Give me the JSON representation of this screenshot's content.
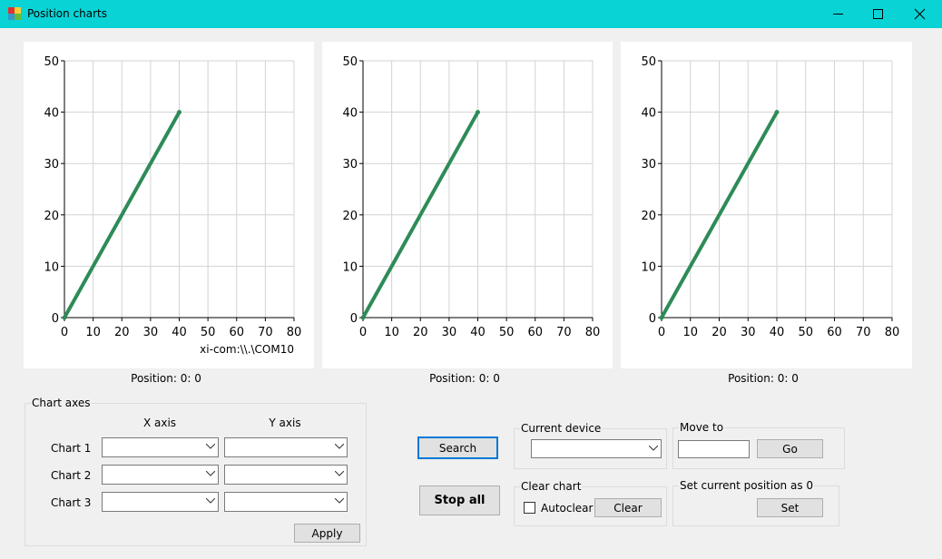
{
  "window": {
    "title": "Position charts"
  },
  "chart_data": [
    {
      "type": "line",
      "x": [
        0,
        40
      ],
      "values": [
        0,
        40
      ],
      "color": "#2e8b57",
      "xlim": [
        0,
        80
      ],
      "ylim": [
        0,
        50
      ],
      "xticks": [
        0,
        10,
        20,
        30,
        40,
        50,
        60,
        70,
        80
      ],
      "yticks": [
        0,
        10,
        20,
        30,
        40,
        50
      ],
      "grid": true,
      "annotation": "xi-com:\\\\.\\COM10"
    },
    {
      "type": "line",
      "x": [
        0,
        40
      ],
      "values": [
        0,
        40
      ],
      "color": "#2e8b57",
      "xlim": [
        0,
        80
      ],
      "ylim": [
        0,
        50
      ],
      "xticks": [
        0,
        10,
        20,
        30,
        40,
        50,
        60,
        70,
        80
      ],
      "yticks": [
        0,
        10,
        20,
        30,
        40,
        50
      ],
      "grid": true
    },
    {
      "type": "line",
      "x": [
        0,
        40
      ],
      "values": [
        0,
        40
      ],
      "color": "#2e8b57",
      "xlim": [
        0,
        80
      ],
      "ylim": [
        0,
        50
      ],
      "xticks": [
        0,
        10,
        20,
        30,
        40,
        50,
        60,
        70,
        80
      ],
      "yticks": [
        0,
        10,
        20,
        30,
        40,
        50
      ],
      "grid": true
    }
  ],
  "position_labels": [
    "Position: 0: 0",
    "Position: 0: 0",
    "Position: 0: 0"
  ],
  "chart_axes": {
    "title": "Chart axes",
    "columns": [
      "X axis",
      "Y axis"
    ],
    "rows": [
      "Chart 1",
      "Chart 2",
      "Chart 3"
    ],
    "apply": "Apply"
  },
  "buttons": {
    "search": "Search",
    "stop_all": "Stop all"
  },
  "current_device": {
    "title": "Current device"
  },
  "move_to": {
    "title": "Move to",
    "go": "Go"
  },
  "clear_chart": {
    "title": "Clear chart",
    "checkbox": "Autoclear",
    "button": "Clear"
  },
  "set_zero": {
    "title": "Set current position as 0",
    "button": "Set"
  }
}
